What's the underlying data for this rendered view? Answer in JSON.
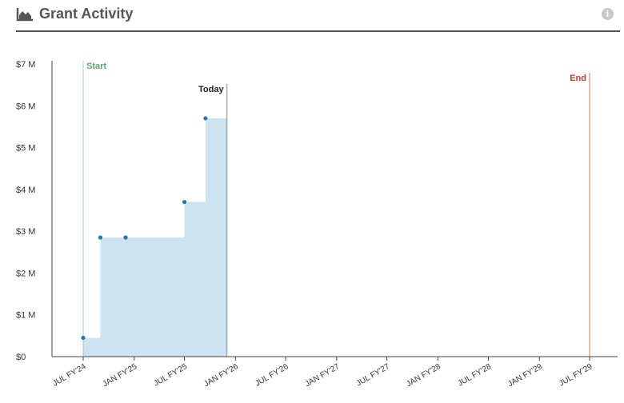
{
  "header": {
    "title": "Grant Activity",
    "title_icon": "area-chart-icon",
    "info_icon": "info-icon",
    "info_glyph": "i"
  },
  "chart_data": {
    "type": "area",
    "title": "Grant Activity",
    "xlabel": "",
    "ylabel": "",
    "ylim": [
      0,
      7000000
    ],
    "xlim": [
      "2024-07-01",
      "2029-07-01"
    ],
    "y_ticks": [
      {
        "value": 0,
        "label": "$0"
      },
      {
        "value": 1000000,
        "label": "$1 M"
      },
      {
        "value": 2000000,
        "label": "$2 M"
      },
      {
        "value": 3000000,
        "label": "$3 M"
      },
      {
        "value": 4000000,
        "label": "$4 M"
      },
      {
        "value": 5000000,
        "label": "$5 M"
      },
      {
        "value": 6000000,
        "label": "$6 M"
      },
      {
        "value": 7000000,
        "label": "$7 M"
      }
    ],
    "x_ticks": [
      {
        "date": "2024-07-01",
        "label": "JUL FY'24"
      },
      {
        "date": "2025-01-01",
        "label": "JAN FY'25"
      },
      {
        "date": "2025-07-01",
        "label": "JUL FY'25"
      },
      {
        "date": "2026-01-01",
        "label": "JAN FY'26"
      },
      {
        "date": "2026-07-01",
        "label": "JUL FY'26"
      },
      {
        "date": "2027-01-01",
        "label": "JAN FY'27"
      },
      {
        "date": "2027-07-01",
        "label": "JUL FY'27"
      },
      {
        "date": "2028-01-01",
        "label": "JAN FY'28"
      },
      {
        "date": "2028-07-01",
        "label": "JUL FY'28"
      },
      {
        "date": "2029-01-01",
        "label": "JAN FY'29"
      },
      {
        "date": "2029-07-01",
        "label": "JUL FY'29"
      }
    ],
    "series": [
      {
        "step": "post",
        "color": "#1f77b4",
        "fill": "#cce3f1",
        "points": [
          {
            "x": "2024-07-01",
            "y": 450000
          },
          {
            "x": "2024-09-01",
            "y": 2850000
          },
          {
            "x": "2024-12-01",
            "y": 2850000
          },
          {
            "x": "2025-07-01",
            "y": 3700000
          },
          {
            "x": "2025-09-15",
            "y": 5700000
          }
        ],
        "end_x": "2025-12-01"
      }
    ],
    "markers": [
      {
        "label": "Start",
        "x": "2024-07-01",
        "color": "#5fa86a"
      },
      {
        "label": "Today",
        "x": "2025-12-01",
        "color": "#888888"
      },
      {
        "label": "End",
        "x": "2029-07-01",
        "color": "#c0392b"
      }
    ],
    "grid": false
  }
}
